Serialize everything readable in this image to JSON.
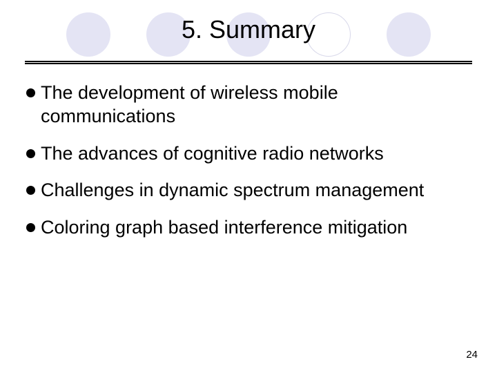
{
  "title": "5. Summary",
  "circles": {
    "colors": [
      "#e4e4f4",
      "#e4e4f4",
      "#e4e4f4",
      "#ffffff",
      "#e4e4f4"
    ],
    "border": "#d8d8ea"
  },
  "bullets": [
    "The development of wireless mobile communications",
    "The advances of cognitive radio networks",
    "Challenges in dynamic spectrum management",
    "Coloring graph based interference mitigation"
  ],
  "page_number": "24",
  "colors": {
    "background": "#ffffff",
    "text": "#000000",
    "ruler": "#000000"
  },
  "typography": {
    "title_fontsize": 36,
    "bullet_fontsize": 27,
    "pagenum_fontsize": 15
  }
}
